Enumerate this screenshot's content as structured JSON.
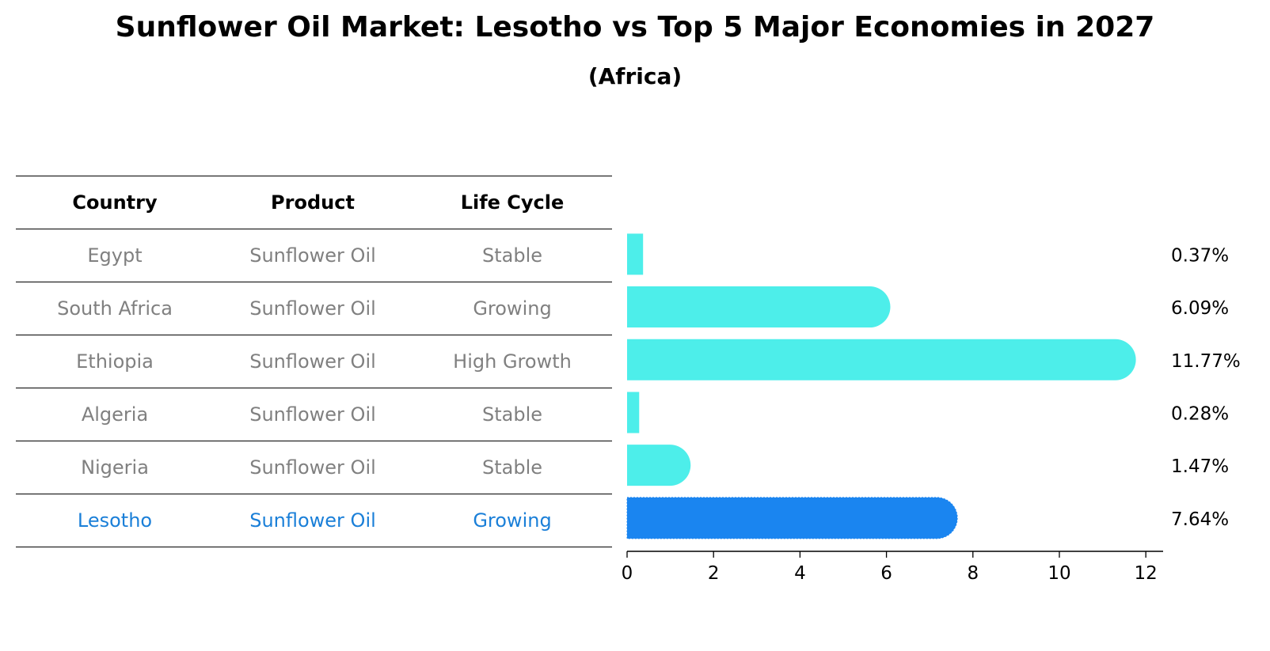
{
  "title": "Sunflower Oil Market: Lesotho vs Top 5 Major Economies in 2027",
  "subtitle": "(Africa)",
  "table": {
    "headers": [
      "Country",
      "Product",
      "Life Cycle"
    ],
    "rows": [
      [
        "Egypt",
        "Sunflower Oil",
        "Stable"
      ],
      [
        "South Africa",
        "Sunflower Oil",
        "Growing"
      ],
      [
        "Ethiopia",
        "Sunflower Oil",
        "High Growth"
      ],
      [
        "Algeria",
        "Sunflower Oil",
        "Stable"
      ],
      [
        "Nigeria",
        "Sunflower Oil",
        "Stable"
      ],
      [
        "Lesotho",
        "Sunflower Oil",
        "Growing"
      ]
    ]
  },
  "chart_data": {
    "type": "bar",
    "orientation": "horizontal",
    "categories": [
      "Egypt",
      "South Africa",
      "Ethiopia",
      "Algeria",
      "Nigeria",
      "Lesotho"
    ],
    "values": [
      0.37,
      6.09,
      11.77,
      0.28,
      1.47,
      7.64
    ],
    "value_labels": [
      "0.37%",
      "6.09%",
      "11.77%",
      "0.28%",
      "1.47%",
      "7.64%"
    ],
    "highlight": "Lesotho",
    "xlim": [
      0,
      12.4
    ],
    "xticks": [
      0,
      2,
      4,
      6,
      8,
      10,
      12
    ],
    "colors": {
      "default": "#4deeea",
      "highlight": "#1a85f0"
    },
    "grid": false
  }
}
